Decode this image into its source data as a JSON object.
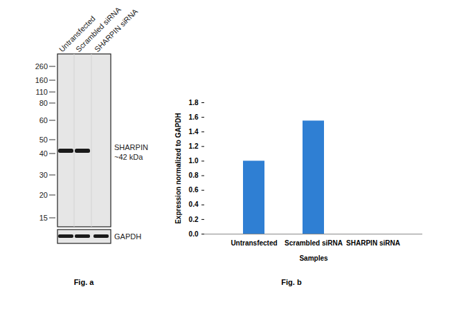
{
  "chart_data": {
    "type": "bar",
    "categories": [
      "Untransfected",
      "Scrambled siRNA",
      "SHARPIN siRNA"
    ],
    "values": [
      1.0,
      1.55,
      0
    ],
    "color": "#2f7fd3",
    "ylabel": "Expression normalized to GAPDH",
    "xlabel": "Samples",
    "ylim": [
      0,
      1.8
    ],
    "yticks": [
      0,
      0.2,
      0.4,
      0.6,
      0.8,
      1,
      1.2,
      1.4,
      1.6,
      1.8
    ],
    "grid": false
  },
  "blot": {
    "lanes": [
      "Untransfected",
      "Scrambled siRNA",
      "SHARPIN siRNA"
    ],
    "markers": [
      260,
      160,
      110,
      80,
      60,
      50,
      40,
      30,
      20,
      15
    ],
    "target_label": "SHARPIN",
    "target_size": "~42 kDa",
    "target_band_present": [
      true,
      true,
      false
    ],
    "loading_control": "GAPDH"
  },
  "figure_labels": [
    "Fig. a",
    "Fig. b"
  ]
}
